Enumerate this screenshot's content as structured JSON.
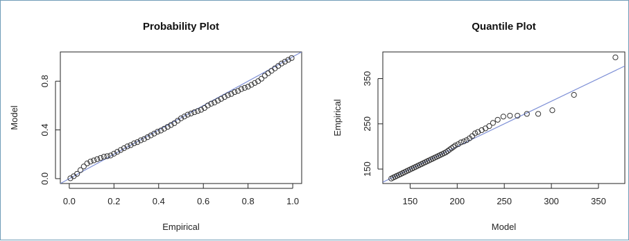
{
  "chart_data": [
    {
      "type": "scatter",
      "title": "Probability Plot",
      "xlabel": "Empirical",
      "ylabel": "Model",
      "xlim": [
        -0.04,
        1.04
      ],
      "ylim": [
        -0.04,
        1.04
      ],
      "xticks": [
        "0.0",
        "0.2",
        "0.4",
        "0.6",
        "0.8",
        "1.0"
      ],
      "yticks": [
        "0.0",
        "0.4",
        "0.8"
      ],
      "reference_line": {
        "from": [
          -0.04,
          -0.04
        ],
        "to": [
          1.04,
          1.04
        ],
        "color": "#7d8fd6"
      },
      "marker_color": "#333333",
      "x": [
        0.005,
        0.02,
        0.035,
        0.05,
        0.065,
        0.08,
        0.095,
        0.11,
        0.125,
        0.14,
        0.155,
        0.17,
        0.185,
        0.2,
        0.215,
        0.23,
        0.245,
        0.26,
        0.275,
        0.29,
        0.305,
        0.32,
        0.335,
        0.35,
        0.365,
        0.38,
        0.395,
        0.41,
        0.425,
        0.44,
        0.455,
        0.47,
        0.485,
        0.5,
        0.515,
        0.53,
        0.545,
        0.56,
        0.575,
        0.59,
        0.605,
        0.62,
        0.635,
        0.65,
        0.665,
        0.68,
        0.695,
        0.71,
        0.725,
        0.74,
        0.755,
        0.77,
        0.785,
        0.8,
        0.815,
        0.83,
        0.845,
        0.86,
        0.875,
        0.89,
        0.905,
        0.92,
        0.935,
        0.95,
        0.965,
        0.98,
        0.995
      ],
      "y": [
        0.003,
        0.02,
        0.04,
        0.07,
        0.1,
        0.125,
        0.14,
        0.15,
        0.16,
        0.17,
        0.18,
        0.185,
        0.19,
        0.205,
        0.22,
        0.235,
        0.25,
        0.265,
        0.275,
        0.29,
        0.3,
        0.315,
        0.325,
        0.34,
        0.355,
        0.37,
        0.385,
        0.395,
        0.41,
        0.425,
        0.44,
        0.455,
        0.475,
        0.495,
        0.51,
        0.525,
        0.535,
        0.545,
        0.555,
        0.565,
        0.58,
        0.6,
        0.615,
        0.625,
        0.64,
        0.655,
        0.67,
        0.685,
        0.695,
        0.71,
        0.72,
        0.735,
        0.745,
        0.755,
        0.77,
        0.785,
        0.8,
        0.82,
        0.845,
        0.865,
        0.885,
        0.905,
        0.925,
        0.945,
        0.96,
        0.975,
        0.99
      ]
    },
    {
      "type": "scatter",
      "title": "Quantile Plot",
      "xlabel": "Model",
      "ylabel": "Empirical",
      "xlim": [
        121,
        378
      ],
      "ylim": [
        118,
        409
      ],
      "xticks": [
        "150",
        "200",
        "250",
        "300",
        "350"
      ],
      "yticks": [
        "150",
        "250",
        "350"
      ],
      "reference_line": {
        "from": [
          121,
          121
        ],
        "to": [
          378,
          378
        ],
        "color": "#7d8fd6"
      },
      "marker_color": "#333333",
      "x": [
        130,
        132,
        134,
        136,
        138,
        140,
        142,
        144,
        146,
        148,
        150,
        152,
        154,
        156,
        158,
        160,
        162,
        164,
        166,
        168,
        170,
        172,
        174,
        176,
        178,
        180,
        182,
        184,
        186,
        188,
        190,
        192,
        194,
        196,
        198,
        201,
        204,
        207,
        210,
        213,
        216,
        219,
        222,
        226,
        230,
        234,
        238,
        243,
        249,
        256,
        264,
        274,
        286,
        301,
        324,
        368
      ],
      "y": [
        129,
        131,
        133,
        135,
        137,
        139,
        141,
        143,
        145,
        147,
        149,
        151,
        153,
        155,
        157,
        159,
        161,
        163,
        165,
        167,
        169,
        171,
        173,
        175,
        177,
        179,
        181,
        183,
        185,
        187,
        190,
        193,
        196,
        199,
        202,
        205,
        209,
        211,
        214,
        218,
        223,
        229,
        232,
        236,
        240,
        245,
        252,
        259,
        266,
        268,
        268,
        272,
        272,
        280,
        314,
        397
      ]
    }
  ]
}
